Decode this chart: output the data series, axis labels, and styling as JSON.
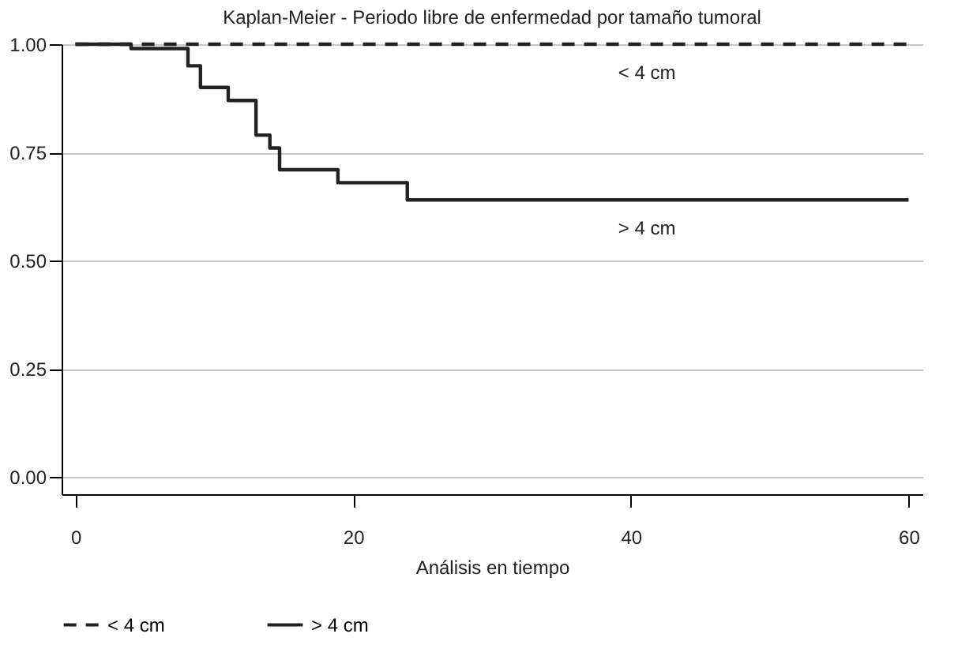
{
  "chart_data": {
    "type": "step",
    "title": "Kaplan-Meier - Periodo libre de enfermedad por tamaño tumoral",
    "xlabel": "Análisis en tiempo",
    "xlim": [
      -1,
      61
    ],
    "xticks": [
      0,
      20,
      40,
      60
    ],
    "ylim": [
      -0.04,
      1.0
    ],
    "yticks": [
      {
        "value": 0,
        "label": "0.00"
      },
      {
        "value": 0.25,
        "label": "0.25"
      },
      {
        "value": 0.5,
        "label": "0.50"
      },
      {
        "value": 0.75,
        "label": "0.75"
      },
      {
        "value": 1,
        "label": "1.00"
      }
    ],
    "grid": "y",
    "legend": "bottom",
    "marker": "none",
    "series": [
      {
        "name": "< 4 cm",
        "color": "#222222",
        "line_style": "dashed",
        "x": [
          0,
          60
        ],
        "values": [
          1,
          1
        ]
      },
      {
        "name": "> 4 cm",
        "color": "#222222",
        "line_style": "solid",
        "x": [
          0,
          4,
          8.1,
          9,
          11,
          13,
          14,
          14.7,
          18.9,
          23.9,
          60
        ],
        "values": [
          1,
          0.99,
          0.95,
          0.9,
          0.87,
          0.79,
          0.76,
          0.71,
          0.68,
          0.64,
          0.64
        ]
      }
    ],
    "annotations": [
      "< 4 cm",
      "> 4 cm"
    ]
  }
}
